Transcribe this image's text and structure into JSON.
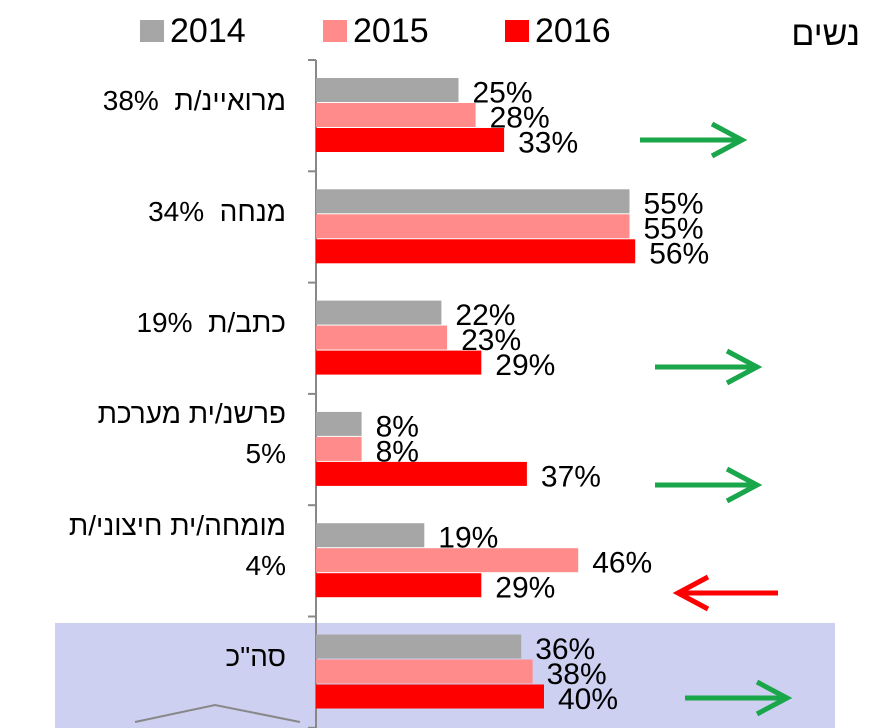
{
  "chart_data": {
    "type": "bar",
    "orientation": "horizontal",
    "title": "נשים",
    "categories": [
      [
        "מרואיינ/ת  38%"
      ],
      [
        "מנחה  34%"
      ],
      [
        "כתב/ת  19%"
      ],
      [
        "פרשנ/ית מערכת",
        "5%"
      ],
      [
        "מומחה/ית חיצוני/ת",
        "4%"
      ],
      [
        "סה\"כ"
      ]
    ],
    "series": [
      {
        "name": "2014",
        "color": "#a6a6a6",
        "values": [
          25,
          55,
          22,
          8,
          19,
          36
        ],
        "value_labels": [
          "25%",
          "55%",
          "22%",
          "8%",
          "19%",
          "36%"
        ]
      },
      {
        "name": "2015",
        "color": "#ff8b8b",
        "values": [
          28,
          55,
          23,
          8,
          46,
          38
        ],
        "value_labels": [
          "28%",
          "55%",
          "23%",
          "8%",
          "46%",
          "38%"
        ]
      },
      {
        "name": "2016",
        "color": "#ff0000",
        "values": [
          33,
          56,
          29,
          37,
          29,
          40
        ],
        "value_labels": [
          "33%",
          "56%",
          "29%",
          "37%",
          "29%",
          "40%"
        ]
      }
    ]
  }
}
